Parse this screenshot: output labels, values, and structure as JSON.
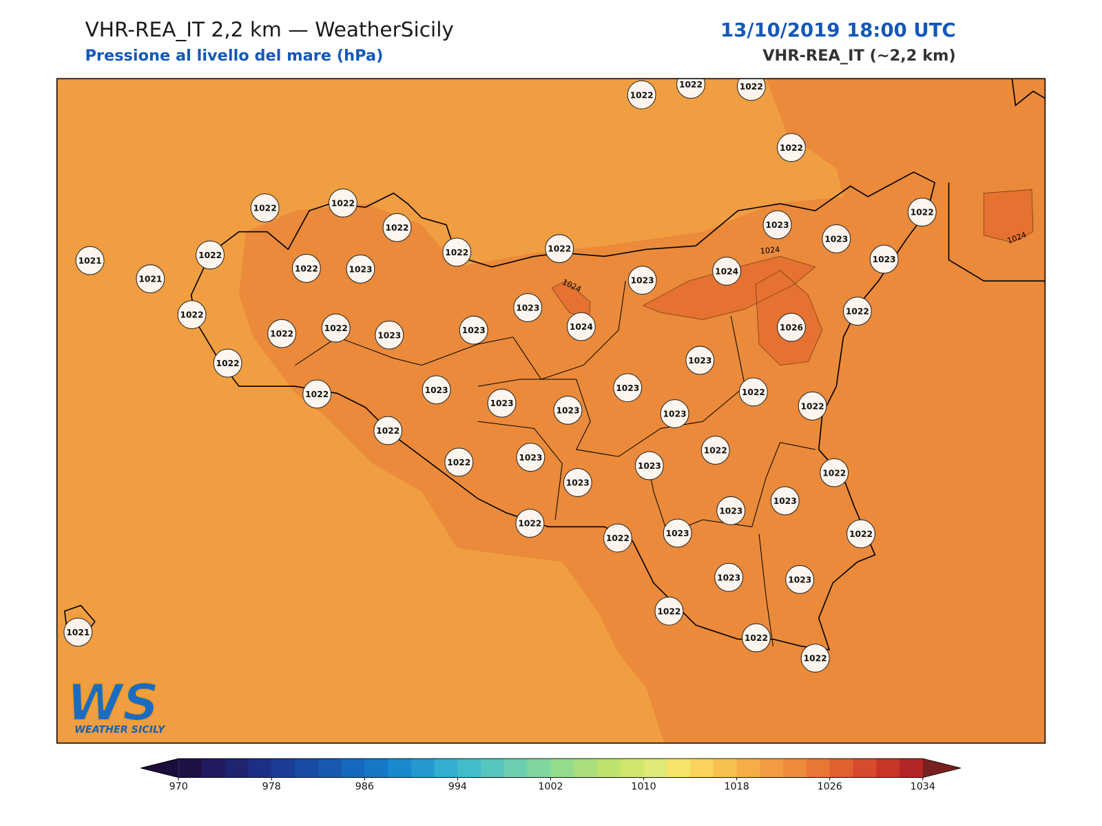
{
  "header": {
    "title": "VHR-REA_IT 2,2 km — WeatherSicily",
    "subtitle": "Pressione al livello del mare (hPa)",
    "date": "13/10/2019 18:00 UTC",
    "model": "VHR-REA_IT (~2,2 km)"
  },
  "map": {
    "fill_colors": [
      "#f09e41",
      "#ea8a3a",
      "#e57230"
    ],
    "station_color": "#fdf5ee",
    "stations": [
      1022,
      1022,
      1022,
      1022,
      1022,
      1022,
      1022,
      1022,
      1022,
      1023,
      1023,
      1022,
      1021,
      1021,
      1022,
      1022,
      1023,
      1023,
      1024,
      1023,
      1023,
      1022,
      1022,
      1022,
      1022,
      1023,
      1023,
      1024,
      1026,
      1023,
      1022,
      1022,
      1023,
      1023,
      1023,
      1023,
      1023,
      1022,
      1022,
      1022,
      1022,
      1023,
      1022,
      1023,
      1023,
      1022,
      1023,
      1023,
      1022,
      1022,
      1023,
      1022,
      1023,
      1023,
      1022,
      1022,
      1022,
      1021
    ],
    "contour_labels": [
      "1024",
      "1024",
      "1024"
    ]
  },
  "logo": {
    "mark": "WS",
    "name": "WEATHER SICILY"
  },
  "colorbar": {
    "lim": [
      970,
      1034
    ],
    "ticks": [
      970,
      978,
      986,
      994,
      1002,
      1010,
      1018,
      1026,
      1034
    ],
    "colors": [
      "#1f1146",
      "#221a5e",
      "#1f2470",
      "#1d2f85",
      "#1b3c95",
      "#1a4aa3",
      "#1758b0",
      "#1468be",
      "#1478c6",
      "#1a88cc",
      "#2598d0",
      "#33aed2",
      "#42bccb",
      "#55c7bf",
      "#6bcfb0",
      "#80d69f",
      "#95db8d",
      "#aadf7c",
      "#bde36c",
      "#cfe66b",
      "#e0e877",
      "#f6e46a",
      "#fad35c",
      "#f8c050",
      "#f5ad48",
      "#f29c41",
      "#ee8a3a",
      "#e87634",
      "#e0602f",
      "#d74a2b",
      "#c83529",
      "#b42525"
    ],
    "under": "#1a0d3a",
    "over": "#7a1f1f"
  }
}
